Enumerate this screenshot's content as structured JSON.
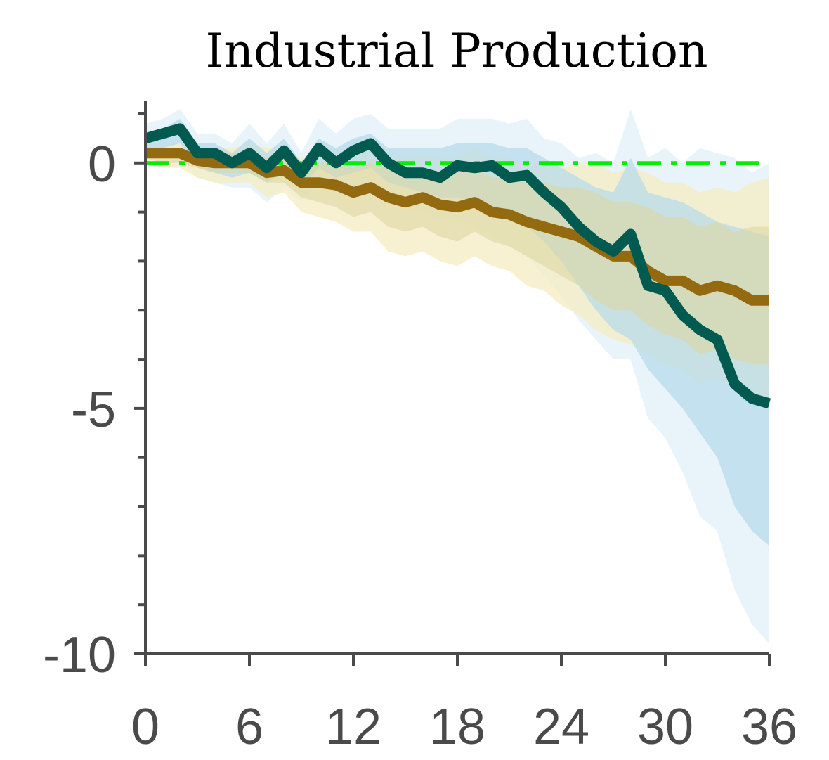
{
  "chart_data": {
    "type": "line",
    "title": "Industrial Production",
    "xlabel": "",
    "ylabel": "",
    "xlim": [
      0,
      36
    ],
    "ylim": [
      -10,
      1.2
    ],
    "x_ticks": [
      0,
      6,
      12,
      18,
      24,
      30,
      36
    ],
    "y_ticks": [
      0,
      -5,
      -10
    ],
    "x": [
      0,
      1,
      2,
      3,
      4,
      5,
      6,
      7,
      8,
      9,
      10,
      11,
      12,
      13,
      14,
      15,
      16,
      17,
      18,
      19,
      20,
      21,
      22,
      23,
      24,
      25,
      26,
      27,
      28,
      29,
      30,
      31,
      32,
      33,
      34,
      35,
      36
    ],
    "zero_line": 0,
    "colors": {
      "teal_line": "#005a50",
      "gold_line": "#946a10",
      "blue_band_outer": "#e5f3f9",
      "blue_band_inner": "#b7dbea",
      "yellow_band_outer": "#f6ecc1",
      "yellow_band_inner": "#ded7a4",
      "zero_line": "#00ee00",
      "axis": "#4a4a4a"
    },
    "series": [
      {
        "values": [
          0.5,
          0.6,
          0.7,
          0.2,
          0.2,
          0.0,
          0.2,
          -0.1,
          0.25,
          -0.2,
          0.3,
          0.0,
          0.25,
          0.4,
          0.0,
          -0.2,
          -0.2,
          -0.3,
          -0.05,
          -0.1,
          -0.05,
          -0.3,
          -0.25,
          -0.6,
          -0.9,
          -1.3,
          -1.6,
          -1.8,
          -1.45,
          -2.5,
          -2.6,
          -3.1,
          -3.4,
          -3.6,
          -4.5,
          -4.8,
          -4.9
        ],
        "band_inner_upper": [
          0.6,
          0.7,
          0.9,
          0.4,
          0.4,
          0.2,
          0.5,
          0.2,
          0.5,
          0.0,
          0.5,
          0.3,
          0.5,
          0.6,
          0.3,
          0.3,
          0.3,
          0.3,
          0.4,
          0.4,
          0.4,
          0.3,
          0.3,
          0.1,
          -0.1,
          -0.3,
          -0.5,
          -0.6,
          0.1,
          -0.6,
          -0.7,
          -0.8,
          -1.0,
          -1.2,
          -1.3,
          -1.4,
          -1.5
        ],
        "band_inner_lower": [
          0.3,
          0.3,
          0.4,
          -0.1,
          -0.2,
          -0.3,
          -0.2,
          -0.4,
          -0.2,
          -0.5,
          -0.1,
          -0.3,
          -0.2,
          -0.1,
          -0.4,
          -0.5,
          -0.6,
          -0.7,
          -0.7,
          -0.8,
          -0.9,
          -1.1,
          -1.3,
          -1.6,
          -2.0,
          -2.5,
          -3.0,
          -3.4,
          -3.6,
          -4.2,
          -4.6,
          -5.0,
          -5.5,
          -6.0,
          -7.0,
          -7.5,
          -7.8
        ],
        "band_outer_upper": [
          0.8,
          0.9,
          1.1,
          0.6,
          0.6,
          0.4,
          0.8,
          0.4,
          0.8,
          0.2,
          0.9,
          0.6,
          0.9,
          1.0,
          0.7,
          0.7,
          0.7,
          0.7,
          0.9,
          0.9,
          0.9,
          0.8,
          0.9,
          0.5,
          0.4,
          0.1,
          0.2,
          0.0,
          1.1,
          0.1,
          0.3,
          0.0,
          0.3,
          0.2,
          0.1,
          -0.2,
          0.0
        ],
        "band_outer_lower": [
          0.1,
          0.1,
          0.1,
          -0.3,
          -0.4,
          -0.5,
          -0.5,
          -0.8,
          -0.5,
          -0.8,
          -0.4,
          -0.6,
          -0.5,
          -0.4,
          -0.8,
          -0.9,
          -1.0,
          -1.2,
          -1.2,
          -1.3,
          -1.5,
          -1.7,
          -1.9,
          -2.3,
          -2.7,
          -3.2,
          -3.6,
          -4.0,
          -4.0,
          -5.2,
          -5.6,
          -6.3,
          -7.2,
          -7.5,
          -8.7,
          -9.4,
          -9.8
        ]
      },
      {
        "values": [
          0.2,
          0.2,
          0.2,
          0.05,
          0.0,
          0.0,
          0.0,
          -0.2,
          -0.15,
          -0.4,
          -0.4,
          -0.45,
          -0.6,
          -0.5,
          -0.7,
          -0.8,
          -0.7,
          -0.85,
          -0.9,
          -0.8,
          -1.0,
          -1.05,
          -1.2,
          -1.3,
          -1.4,
          -1.5,
          -1.7,
          -1.9,
          -1.9,
          -2.2,
          -2.4,
          -2.4,
          -2.6,
          -2.5,
          -2.6,
          -2.8,
          -2.8
        ],
        "band_inner_upper": [
          0.3,
          0.3,
          0.3,
          0.2,
          0.2,
          0.2,
          0.2,
          0.1,
          0.1,
          -0.1,
          0.0,
          0.0,
          -0.1,
          0.0,
          -0.1,
          -0.2,
          -0.1,
          -0.2,
          -0.2,
          -0.1,
          -0.3,
          -0.3,
          -0.4,
          -0.4,
          -0.5,
          -0.5,
          -0.6,
          -0.8,
          -0.8,
          -0.9,
          -1.1,
          -1.1,
          -1.3,
          -1.2,
          -1.4,
          -1.3,
          -1.3
        ],
        "band_inner_lower": [
          0.1,
          0.0,
          0.0,
          -0.1,
          -0.2,
          -0.2,
          -0.2,
          -0.4,
          -0.4,
          -0.7,
          -0.8,
          -0.9,
          -1.1,
          -1.0,
          -1.3,
          -1.4,
          -1.3,
          -1.5,
          -1.6,
          -1.4,
          -1.6,
          -1.7,
          -1.9,
          -2.1,
          -2.3,
          -2.5,
          -2.8,
          -3.0,
          -3.0,
          -3.3,
          -3.5,
          -3.6,
          -3.9,
          -3.8,
          -4.0,
          -4.1,
          -4.1
        ],
        "band_outer_upper": [
          0.4,
          0.4,
          0.4,
          0.3,
          0.3,
          0.3,
          0.4,
          0.3,
          0.3,
          0.1,
          0.2,
          0.2,
          0.1,
          0.3,
          0.2,
          0.1,
          0.2,
          0.1,
          0.1,
          0.3,
          0.1,
          0.1,
          0.0,
          0.0,
          -0.1,
          0.0,
          0.0,
          -0.2,
          -0.1,
          -0.2,
          -0.4,
          -0.4,
          -0.6,
          -0.5,
          -0.6,
          -0.4,
          -0.3
        ],
        "band_outer_lower": [
          0.0,
          -0.1,
          -0.1,
          -0.3,
          -0.4,
          -0.4,
          -0.4,
          -0.7,
          -0.6,
          -1.0,
          -1.1,
          -1.2,
          -1.4,
          -1.4,
          -1.8,
          -1.9,
          -1.8,
          -2.0,
          -2.1,
          -1.9,
          -2.1,
          -2.2,
          -2.5,
          -2.6,
          -2.9,
          -3.1,
          -3.4,
          -3.6,
          -3.7,
          -3.9,
          -4.1,
          -4.2,
          -4.5,
          -4.4,
          -4.6,
          -4.8,
          -5.0
        ]
      }
    ]
  }
}
